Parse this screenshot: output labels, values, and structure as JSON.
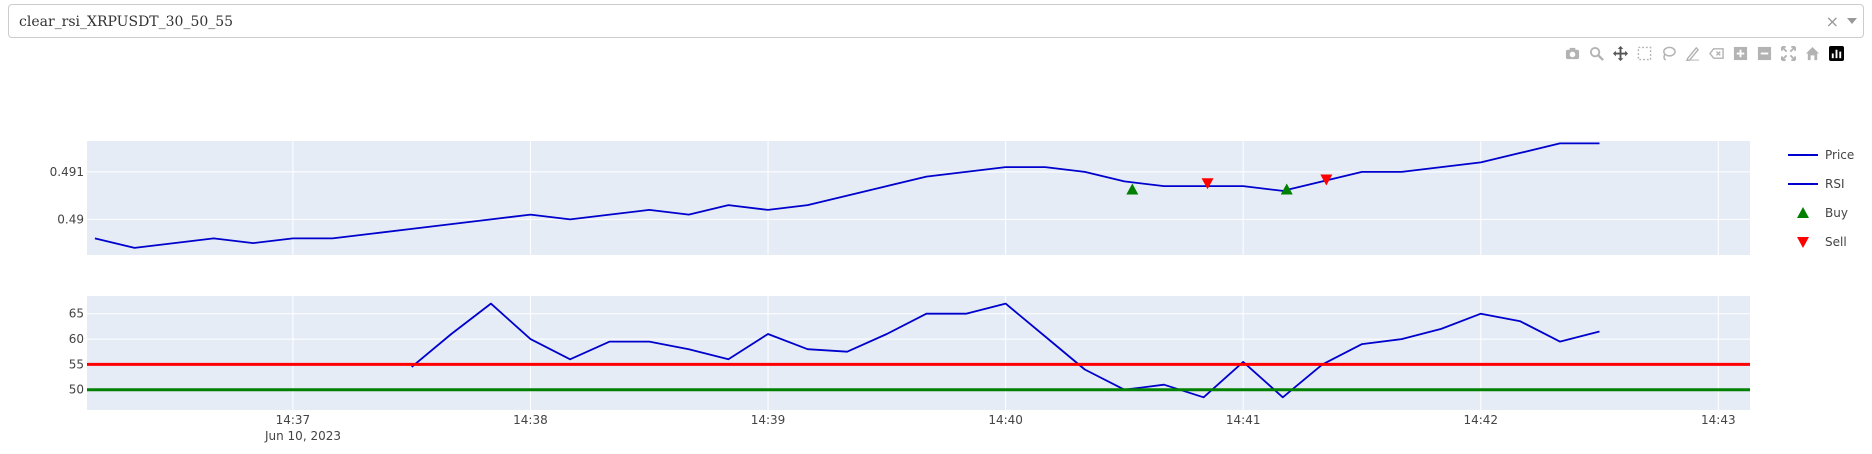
{
  "selector": {
    "value": "clear_rsi_XRPUSDT_30_50_55"
  },
  "modebar": [
    "camera-icon",
    "zoom-icon",
    "pan-icon",
    "box-select-icon",
    "lasso-icon",
    "draw-icon",
    "erase-icon",
    "zoom-in-icon",
    "zoom-out-icon",
    "autoscale-icon",
    "reset-icon",
    "plotly-logo-icon"
  ],
  "colors": {
    "plot_bg": "#e5ecf6",
    "line": "#0000cd",
    "buy": "#008000",
    "sell": "#ff0000",
    "upper": "#ff0000",
    "lower": "#008000"
  },
  "chart_data": [
    {
      "type": "line",
      "title": "",
      "xlabel": "",
      "ylabel": "",
      "xlim": [
        "14:36:08",
        "14:43:08"
      ],
      "ylim": [
        0.48925,
        0.49165
      ],
      "yticks": [
        0.49,
        0.491
      ],
      "ytick_labels": [
        "0.49",
        "0.491"
      ],
      "grid": true,
      "series": [
        {
          "name": "Price",
          "x": [
            "14:36:10",
            "14:36:20",
            "14:36:30",
            "14:36:40",
            "14:36:50",
            "14:37:00",
            "14:37:10",
            "14:37:20",
            "14:37:30",
            "14:37:40",
            "14:37:50",
            "14:38:00",
            "14:38:10",
            "14:38:20",
            "14:38:30",
            "14:38:40",
            "14:38:50",
            "14:39:00",
            "14:39:10",
            "14:39:20",
            "14:39:30",
            "14:39:40",
            "14:39:50",
            "14:40:00",
            "14:40:10",
            "14:40:20",
            "14:40:30",
            "14:40:40",
            "14:40:50",
            "14:41:00",
            "14:41:10",
            "14:41:20",
            "14:41:30",
            "14:41:40",
            "14:41:50",
            "14:42:00",
            "14:42:10",
            "14:42:20",
            "14:42:30"
          ],
          "values": [
            0.4896,
            0.4894,
            0.4895,
            0.4896,
            0.4895,
            0.4896,
            0.4896,
            0.4897,
            0.4898,
            0.4899,
            0.49,
            0.4901,
            0.49,
            0.4901,
            0.4902,
            0.4901,
            0.4903,
            0.4902,
            0.4903,
            0.4905,
            0.4907,
            0.4909,
            0.491,
            0.4911,
            0.4911,
            0.491,
            0.4908,
            0.4907,
            0.4907,
            0.4907,
            0.4906,
            0.4908,
            0.491,
            0.491,
            0.4911,
            0.4912,
            0.4914,
            0.4916,
            0.4916
          ]
        },
        {
          "name": "Buy",
          "marker": "triangle-up",
          "x": [
            "14:40:32",
            "14:41:11"
          ],
          "values": [
            0.49063,
            0.49063
          ]
        },
        {
          "name": "Sell",
          "marker": "triangle-down",
          "x": [
            "14:40:51",
            "14:41:21"
          ],
          "values": [
            0.49076,
            0.49084
          ]
        }
      ]
    },
    {
      "type": "line",
      "title": "",
      "xlabel": "",
      "ylabel": "",
      "xlim": [
        "14:36:08",
        "14:43:08"
      ],
      "ylim": [
        46,
        68.5
      ],
      "yticks": [
        50,
        55,
        60,
        65
      ],
      "ytick_labels": [
        "50",
        "55",
        "60",
        "65"
      ],
      "xticks": [
        "14:37",
        "14:38",
        "14:39",
        "14:40",
        "14:41",
        "14:42",
        "14:43"
      ],
      "xtick_labels": [
        "14:37",
        "14:38",
        "14:39",
        "14:40",
        "14:41",
        "14:42",
        "14:43"
      ],
      "date_label": "Jun 10, 2023",
      "grid": true,
      "series": [
        {
          "name": "RSI",
          "x": [
            "14:37:30",
            "14:37:40",
            "14:37:50",
            "14:38:00",
            "14:38:10",
            "14:38:20",
            "14:38:30",
            "14:38:40",
            "14:38:50",
            "14:39:00",
            "14:39:10",
            "14:39:20",
            "14:39:30",
            "14:39:40",
            "14:39:50",
            "14:40:00",
            "14:40:10",
            "14:40:20",
            "14:40:30",
            "14:40:40",
            "14:40:50",
            "14:41:00",
            "14:41:10",
            "14:41:20",
            "14:41:30",
            "14:41:40",
            "14:41:50",
            "14:42:00",
            "14:42:10",
            "14:42:20",
            "14:42:30"
          ],
          "values": [
            54.5,
            61,
            67,
            60,
            56,
            59.5,
            59.5,
            58,
            56,
            61,
            58,
            57.5,
            61,
            65,
            65,
            67,
            60.5,
            54,
            50,
            51,
            48.5,
            55.5,
            48.5,
            55,
            59,
            60,
            62,
            65,
            63.5,
            59.5,
            61.5
          ]
        },
        {
          "name": "Upper",
          "x": [
            "14:36:08",
            "14:43:08"
          ],
          "values": [
            55,
            55
          ]
        },
        {
          "name": "Lower",
          "x": [
            "14:36:08",
            "14:43:08"
          ],
          "values": [
            50,
            50
          ]
        }
      ]
    }
  ],
  "legend": {
    "placement": "right",
    "items": [
      {
        "label": "Price",
        "symbol": "line"
      },
      {
        "label": "RSI",
        "symbol": "line"
      },
      {
        "label": "Buy",
        "symbol": "triangle-up"
      },
      {
        "label": "Sell",
        "symbol": "triangle-down"
      }
    ]
  }
}
